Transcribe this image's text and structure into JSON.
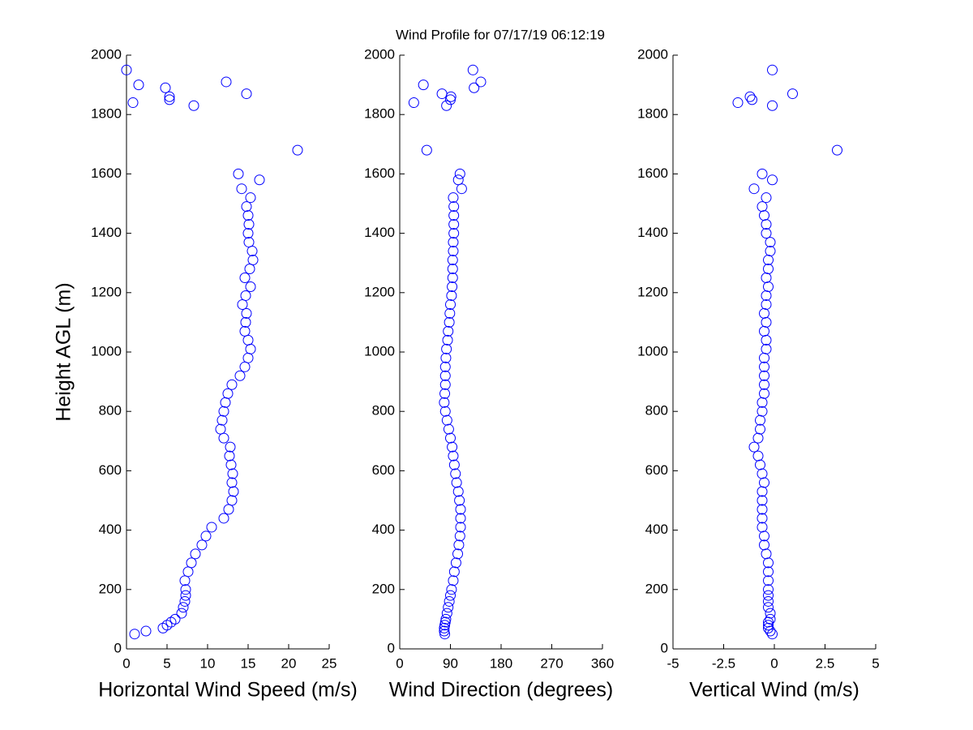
{
  "chart_data": [
    {
      "type": "scatter",
      "title": "Wind Profile for  07/17/19 06:12:19",
      "xlabel": "Horizontal Wind Speed (m/s)",
      "ylabel": "Height AGL (m)",
      "color": "#0000ff",
      "xlim": [
        0,
        25
      ],
      "xticks": [
        0,
        5,
        10,
        15,
        20,
        25
      ],
      "ylim": [
        0,
        2000
      ],
      "yticks": [
        0,
        200,
        400,
        600,
        800,
        1000,
        1200,
        1400,
        1600,
        1800,
        2000
      ],
      "x": [
        1.0,
        2.4,
        4.5,
        5.0,
        5.5,
        6.0,
        6.8,
        7.0,
        7.2,
        7.3,
        7.3,
        7.2,
        7.6,
        8.0,
        8.5,
        9.3,
        9.8,
        10.5,
        12.0,
        12.6,
        13.0,
        13.2,
        13.0,
        13.1,
        12.9,
        12.7,
        12.8,
        12.0,
        11.6,
        11.8,
        12.0,
        12.2,
        12.5,
        13.0,
        14.0,
        14.6,
        15.0,
        15.3,
        15.0,
        14.6,
        14.7,
        14.8,
        14.3,
        14.7,
        15.3,
        14.6,
        15.2,
        15.6,
        15.5,
        15.1,
        15.0,
        15.1,
        15.0,
        14.8,
        15.3,
        14.2,
        16.4,
        13.8,
        21.1,
        8.3,
        0.8,
        5.3,
        5.3,
        14.8,
        4.8,
        1.5,
        12.3,
        0.0
      ],
      "y": [
        50,
        60,
        70,
        80,
        90,
        100,
        120,
        140,
        160,
        180,
        200,
        230,
        260,
        290,
        320,
        350,
        380,
        410,
        440,
        470,
        500,
        530,
        560,
        590,
        620,
        650,
        680,
        710,
        740,
        770,
        800,
        830,
        860,
        890,
        920,
        950,
        980,
        1010,
        1040,
        1070,
        1100,
        1130,
        1160,
        1190,
        1220,
        1250,
        1280,
        1310,
        1340,
        1370,
        1400,
        1430,
        1460,
        1490,
        1520,
        1550,
        1580,
        1600,
        1680,
        1830,
        1840,
        1850,
        1860,
        1870,
        1890,
        1900,
        1910,
        1950
      ]
    },
    {
      "type": "scatter",
      "xlabel": "Wind Direction (degrees)",
      "color": "#0000ff",
      "xlim": [
        0,
        360
      ],
      "xticks": [
        0,
        90,
        180,
        270,
        360
      ],
      "ylim": [
        0,
        2000
      ],
      "yticks": [
        0,
        200,
        400,
        600,
        800,
        1000,
        1200,
        1400,
        1600,
        1800,
        2000
      ],
      "x": [
        80,
        79,
        79,
        80,
        81,
        82,
        84,
        86,
        88,
        90,
        92,
        95,
        97,
        100,
        103,
        105,
        107,
        108,
        108,
        108,
        106,
        104,
        101,
        99,
        97,
        95,
        93,
        90,
        87,
        84,
        81,
        79,
        80,
        81,
        81,
        81,
        82,
        83,
        85,
        86,
        88,
        89,
        90,
        92,
        93,
        94,
        94,
        94,
        95,
        95,
        96,
        96,
        96,
        96,
        95,
        110,
        104,
        107,
        48,
        83,
        25,
        90,
        91,
        75,
        132,
        42,
        144,
        130
      ],
      "y": [
        50,
        60,
        70,
        80,
        90,
        100,
        120,
        140,
        160,
        180,
        200,
        230,
        260,
        290,
        320,
        350,
        380,
        410,
        440,
        470,
        500,
        530,
        560,
        590,
        620,
        650,
        680,
        710,
        740,
        770,
        800,
        830,
        860,
        890,
        920,
        950,
        980,
        1010,
        1040,
        1070,
        1100,
        1130,
        1160,
        1190,
        1220,
        1250,
        1280,
        1310,
        1340,
        1370,
        1400,
        1430,
        1460,
        1490,
        1520,
        1550,
        1580,
        1600,
        1680,
        1830,
        1840,
        1850,
        1860,
        1870,
        1890,
        1900,
        1910,
        1950
      ]
    },
    {
      "type": "scatter",
      "xlabel": "Vertical Wind (m/s)",
      "color": "#0000ff",
      "xlim": [
        -5,
        5
      ],
      "xticks": [
        -5,
        -2.5,
        0,
        2.5,
        5
      ],
      "ylim": [
        0,
        2000
      ],
      "yticks": [
        0,
        200,
        400,
        600,
        800,
        1000,
        1200,
        1400,
        1600,
        1800,
        2000
      ],
      "x": [
        -0.1,
        -0.2,
        -0.3,
        -0.3,
        -0.3,
        -0.2,
        -0.2,
        -0.3,
        -0.3,
        -0.3,
        -0.3,
        -0.3,
        -0.3,
        -0.3,
        -0.4,
        -0.5,
        -0.5,
        -0.6,
        -0.6,
        -0.6,
        -0.6,
        -0.6,
        -0.5,
        -0.6,
        -0.7,
        -0.8,
        -1.0,
        -0.8,
        -0.7,
        -0.7,
        -0.6,
        -0.6,
        -0.5,
        -0.5,
        -0.5,
        -0.5,
        -0.5,
        -0.4,
        -0.4,
        -0.5,
        -0.4,
        -0.5,
        -0.4,
        -0.4,
        -0.3,
        -0.4,
        -0.3,
        -0.3,
        -0.2,
        -0.2,
        -0.4,
        -0.4,
        -0.5,
        -0.6,
        -0.4,
        -1.0,
        -0.1,
        -0.6,
        3.1,
        -0.1,
        -1.8,
        -1.1,
        -1.2,
        0.9,
        -0.1
      ],
      "y": [
        50,
        60,
        70,
        80,
        90,
        100,
        120,
        140,
        160,
        180,
        200,
        230,
        260,
        290,
        320,
        350,
        380,
        410,
        440,
        470,
        500,
        530,
        560,
        590,
        620,
        650,
        680,
        710,
        740,
        770,
        800,
        830,
        860,
        890,
        920,
        950,
        980,
        1010,
        1040,
        1070,
        1100,
        1130,
        1160,
        1190,
        1220,
        1250,
        1280,
        1310,
        1340,
        1370,
        1400,
        1430,
        1460,
        1490,
        1520,
        1550,
        1580,
        1600,
        1680,
        1830,
        1840,
        1850,
        1860,
        1870,
        1950
      ]
    }
  ]
}
